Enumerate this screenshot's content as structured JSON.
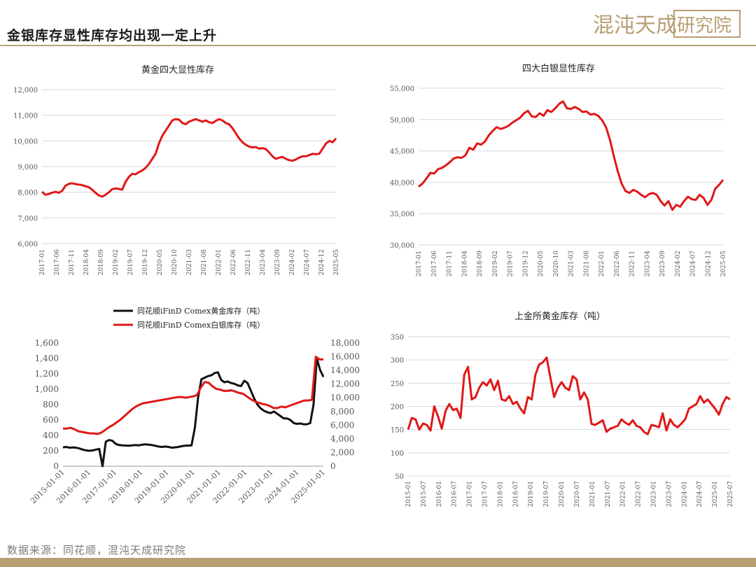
{
  "page": {
    "title": "金银库存显性库存均出现一定上升",
    "logo_text": "混沌天成研究院",
    "source": "数据来源：同花顺，混沌天成研究院",
    "colors": {
      "red": "#e01818",
      "black": "#111111",
      "grid": "#d9d9d9",
      "axis_text": "#555555",
      "accent": "#b79e73"
    }
  },
  "chart_data": [
    {
      "type": "line",
      "title": "黄金四大显性库存",
      "xlabel": "",
      "ylabel": "",
      "ylim": [
        6000,
        12000
      ],
      "y_ticks": [
        "6,000",
        "7,000",
        "8,000",
        "9,000",
        "10,000",
        "11,000",
        "12,000"
      ],
      "x_ticks": [
        "2017-01",
        "2017-06",
        "2017-11",
        "2018-04",
        "2018-09",
        "2019-02",
        "2019-07",
        "2019-12",
        "2020-05",
        "2020-10",
        "2021-03",
        "2021-08",
        "2022-01",
        "2022-06",
        "2022-11",
        "2023-04",
        "2023-09",
        "2024-02",
        "2024-07",
        "2024-12",
        "2025-05"
      ],
      "grid": true,
      "series": [
        {
          "color": "#e01818",
          "values": [
            8020,
            7900,
            7930,
            7980,
            8020,
            7980,
            8050,
            8250,
            8330,
            8350,
            8320,
            8300,
            8280,
            8240,
            8200,
            8100,
            7980,
            7880,
            7830,
            7900,
            8000,
            8120,
            8150,
            8130,
            8100,
            8400,
            8600,
            8720,
            8700,
            8780,
            8850,
            8950,
            9100,
            9300,
            9500,
            9900,
            10200,
            10400,
            10600,
            10800,
            10850,
            10830,
            10700,
            10650,
            10750,
            10800,
            10850,
            10800,
            10750,
            10800,
            10730,
            10700,
            10780,
            10850,
            10800,
            10700,
            10650,
            10500,
            10300,
            10100,
            9950,
            9850,
            9780,
            9750,
            9760,
            9700,
            9720,
            9680,
            9550,
            9400,
            9300,
            9350,
            9380,
            9300,
            9250,
            9230,
            9280,
            9350,
            9400,
            9400,
            9450,
            9500,
            9480,
            9500,
            9700,
            9900,
            10000,
            9950,
            10100
          ]
        }
      ]
    },
    {
      "type": "line",
      "title": "四大白银显性库存",
      "xlabel": "",
      "ylabel": "",
      "ylim": [
        30000,
        55000
      ],
      "y_ticks": [
        "30,000",
        "35,000",
        "40,000",
        "45,000",
        "50,000",
        "55,000"
      ],
      "x_ticks": [
        "2017-01",
        "2017-06",
        "2017-11",
        "2018-04",
        "2018-09",
        "2019-02",
        "2019-07",
        "2019-12",
        "2020-05",
        "2020-10",
        "2021-03",
        "2021-08",
        "2022-01",
        "2022-06",
        "2022-11",
        "2023-04",
        "2023-09",
        "2024-02",
        "2024-07",
        "2024-12",
        "2025-05"
      ],
      "grid": true,
      "series": [
        {
          "color": "#e01818",
          "values": [
            39300,
            39800,
            40600,
            41500,
            41400,
            42100,
            42300,
            42700,
            43200,
            43800,
            44000,
            43900,
            44300,
            45500,
            45200,
            46200,
            46000,
            46500,
            47500,
            48200,
            48800,
            48500,
            48700,
            49000,
            49500,
            49900,
            50300,
            51000,
            51400,
            50500,
            50400,
            51000,
            50600,
            51500,
            51200,
            51800,
            52500,
            52900,
            51800,
            51700,
            52000,
            51700,
            51200,
            51300,
            50800,
            50900,
            50600,
            49900,
            48800,
            46800,
            44200,
            41800,
            39800,
            38600,
            38300,
            38800,
            38500,
            38000,
            37600,
            38100,
            38300,
            38000,
            37000,
            36300,
            37000,
            35600,
            36400,
            36100,
            37000,
            37700,
            37300,
            37200,
            38000,
            37500,
            36400,
            37200,
            39000,
            39600,
            40400
          ]
        }
      ]
    },
    {
      "type": "line",
      "title": "",
      "xlabel": "",
      "ylabel": "",
      "ylim": [
        0,
        1600
      ],
      "y2lim": [
        0,
        18000
      ],
      "y_ticks": [
        "0",
        "200",
        "400",
        "600",
        "800",
        "1,000",
        "1,200",
        "1,400",
        "1,600"
      ],
      "y2_ticks": [
        "0",
        "2,000",
        "4,000",
        "6,000",
        "8,000",
        "10,000",
        "12,000",
        "14,000",
        "16,000",
        "18,000"
      ],
      "x_ticks": [
        "2015-01-01",
        "2016-01-01",
        "2017-01-01",
        "2018-01-01",
        "2019-01-01",
        "2020-01-01",
        "2021-01-01",
        "2022-01-01",
        "2023-01-01",
        "2024-01-01",
        "2025-01-01"
      ],
      "grid": false,
      "legend": "top-left",
      "series": [
        {
          "name": "同花顺iFinD Comex黄金库存（吨）",
          "axis": "left",
          "color": "#111111",
          "values": [
            245,
            250,
            240,
            245,
            240,
            230,
            215,
            205,
            200,
            205,
            215,
            225,
            0,
            320,
            340,
            330,
            290,
            275,
            270,
            268,
            265,
            270,
            275,
            270,
            280,
            285,
            280,
            275,
            265,
            255,
            250,
            255,
            250,
            240,
            245,
            250,
            260,
            265,
            268,
            270,
            500,
            900,
            1130,
            1150,
            1170,
            1180,
            1210,
            1220,
            1120,
            1090,
            1100,
            1080,
            1070,
            1050,
            1040,
            1110,
            1080,
            980,
            880,
            800,
            750,
            720,
            700,
            690,
            710,
            680,
            650,
            620,
            620,
            600,
            560,
            550,
            555,
            545,
            545,
            560,
            800,
            1400,
            1250,
            1160
          ]
        },
        {
          "name": "同花顺iFinD Comex白银库存（吨）",
          "axis": "right",
          "color": "#e01818",
          "values": [
            5500,
            5500,
            5600,
            5400,
            5100,
            5000,
            4900,
            4800,
            4800,
            4700,
            4900,
            5300,
            5700,
            6000,
            6400,
            6800,
            7300,
            7800,
            8300,
            8700,
            9000,
            9200,
            9300,
            9400,
            9500,
            9600,
            9700,
            9800,
            9900,
            10000,
            10100,
            10100,
            10000,
            10100,
            10200,
            10400,
            11500,
            12300,
            12200,
            11700,
            11300,
            11200,
            11000,
            11000,
            11100,
            10900,
            10700,
            10600,
            10200,
            9800,
            9500,
            9300,
            9100,
            9000,
            8800,
            8500,
            8500,
            8700,
            8600,
            8800,
            9000,
            9200,
            9400,
            9600,
            9600,
            9700,
            16000,
            15600,
            15600
          ]
        }
      ]
    },
    {
      "type": "line",
      "title": "上金所黄金库存（吨）",
      "xlabel": "",
      "ylabel": "",
      "ylim": [
        50,
        350
      ],
      "y_ticks": [
        "50",
        "100",
        "150",
        "200",
        "250",
        "300",
        "350"
      ],
      "x_ticks": [
        "2015-01",
        "2015-07",
        "2016-01",
        "2016-07",
        "2017-01",
        "2017-07",
        "2018-01",
        "2018-07",
        "2019-01",
        "2019-07",
        "2020-01",
        "2020-07",
        "2021-01",
        "2021-07",
        "2022-01",
        "2022-07",
        "2023-01",
        "2023-07",
        "2024-01",
        "2024-07",
        "2025-01",
        "2025-07"
      ],
      "grid": true,
      "series": [
        {
          "color": "#e01818",
          "values": [
            150,
            175,
            172,
            150,
            163,
            160,
            148,
            200,
            178,
            152,
            190,
            205,
            192,
            195,
            175,
            268,
            285,
            215,
            220,
            240,
            252,
            245,
            258,
            235,
            255,
            215,
            212,
            222,
            205,
            210,
            195,
            185,
            220,
            215,
            268,
            290,
            295,
            305,
            262,
            220,
            240,
            252,
            240,
            235,
            265,
            258,
            215,
            230,
            215,
            162,
            160,
            165,
            170,
            145,
            152,
            155,
            158,
            172,
            165,
            160,
            170,
            158,
            155,
            145,
            140,
            160,
            158,
            155,
            185,
            148,
            172,
            160,
            155,
            163,
            172,
            195,
            200,
            205,
            222,
            208,
            215,
            205,
            195,
            182,
            205,
            220,
            215
          ]
        }
      ]
    }
  ]
}
